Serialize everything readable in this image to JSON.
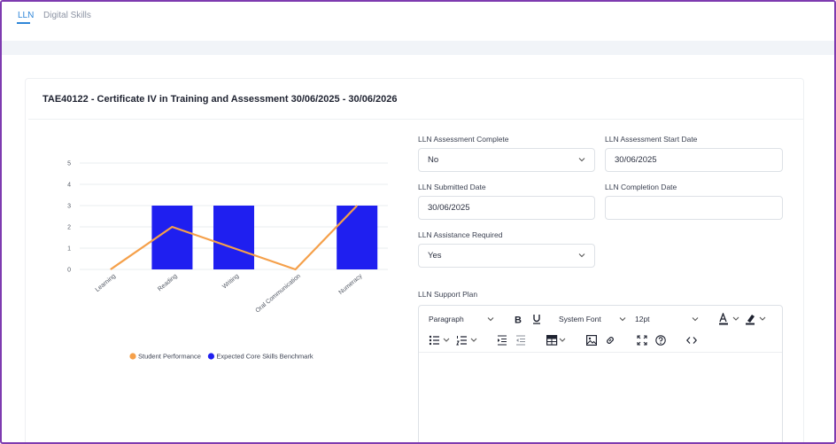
{
  "tabs": [
    {
      "label": "LLN",
      "active": true
    },
    {
      "label": "Digital Skills",
      "active": false
    }
  ],
  "card": {
    "title": "TAE40122 - Certificate IV in Training and Assessment 30/06/2025 - 30/06/2026"
  },
  "chart_data": {
    "type": "bar",
    "categories": [
      "Learning",
      "Reading",
      "Writing",
      "Oral Communication",
      "Numeracy"
    ],
    "series": [
      {
        "name": "Student Performance",
        "type": "line",
        "color": "#f5a04a",
        "values": [
          0,
          2,
          1,
          0,
          3
        ]
      },
      {
        "name": "Expected Core Skills Benchmark",
        "type": "bar",
        "color": "#1f1ff0",
        "values": [
          0,
          3,
          3,
          0,
          3
        ]
      }
    ],
    "y_ticks": [
      "0",
      "1",
      "2",
      "3",
      "4",
      "5"
    ],
    "ylim": [
      0,
      5
    ],
    "grid": true,
    "legend": "bottom-center"
  },
  "form": {
    "assessment_complete": {
      "label": "LLN Assessment Complete",
      "value": "No"
    },
    "start_date": {
      "label": "LLN Assessment Start Date",
      "value": "30/06/2025"
    },
    "submitted_date": {
      "label": "LLN Submitted Date",
      "value": "30/06/2025"
    },
    "completion_date": {
      "label": "LLN Completion Date",
      "value": ""
    },
    "assistance_required": {
      "label": "LLN Assistance Required",
      "value": "Yes"
    },
    "support_plan": {
      "label": "LLN Support Plan"
    }
  },
  "editor": {
    "block_format": "Paragraph",
    "font_family": "System Font",
    "font_size": "12pt",
    "icons": [
      "bold-icon",
      "underline-icon",
      "text-color-icon",
      "highlight-icon",
      "bullet-list-icon",
      "numbered-list-icon",
      "indent-icon",
      "outdent-icon",
      "table-icon",
      "image-icon",
      "link-icon",
      "fullscreen-icon",
      "help-icon",
      "code-icon"
    ]
  }
}
